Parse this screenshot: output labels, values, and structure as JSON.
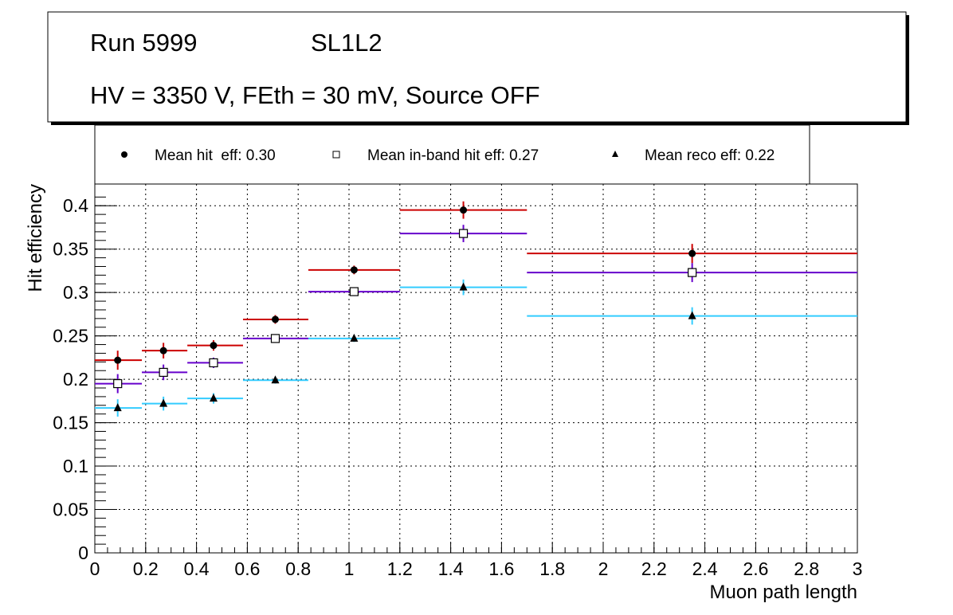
{
  "title_box": {
    "run": "Run 5999",
    "layer": "SL1L2",
    "conditions": "HV = 3350 V, FEth = 30 mV, Source OFF"
  },
  "chart_data": {
    "type": "scatter",
    "xlabel": "Muon path length",
    "ylabel": "Hit efficiency",
    "xlim": [
      0,
      3
    ],
    "ylim": [
      0,
      0.425
    ],
    "grid": true,
    "legend_position": "top",
    "xticks": [
      "0",
      "0.2",
      "0.4",
      "0.6",
      "0.8",
      "1",
      "1.2",
      "1.4",
      "1.6",
      "1.8",
      "2",
      "2.2",
      "2.4",
      "2.6",
      "2.8",
      "3"
    ],
    "yticks": [
      "0",
      "0.05",
      "0.1",
      "0.15",
      "0.2",
      "0.25",
      "0.3",
      "0.35",
      "0.4"
    ],
    "bin_edges": [
      0,
      0.185,
      0.364,
      0.583,
      0.84,
      1.2,
      1.7,
      3
    ],
    "x": [
      0.09,
      0.27,
      0.467,
      0.71,
      1.02,
      1.45,
      2.35
    ],
    "series": [
      {
        "name": "Mean hit  eff: 0.30",
        "marker": "circle",
        "color": "#cc0000",
        "values": [
          0.222,
          0.233,
          0.239,
          0.269,
          0.326,
          0.395,
          0.345
        ],
        "errors": [
          0.011,
          0.009,
          0.006,
          0.005,
          0.005,
          0.01,
          0.011
        ]
      },
      {
        "name": "Mean in-band hit eff: 0.27",
        "marker": "open-square",
        "color": "#6600cc",
        "values": [
          0.195,
          0.208,
          0.219,
          0.247,
          0.301,
          0.368,
          0.323
        ],
        "errors": [
          0.011,
          0.009,
          0.006,
          0.005,
          0.005,
          0.01,
          0.011
        ]
      },
      {
        "name": "Mean reco eff: 0.22",
        "marker": "triangle",
        "color": "#33ccff",
        "values": [
          0.167,
          0.172,
          0.178,
          0.199,
          0.247,
          0.306,
          0.273
        ],
        "errors": [
          0.01,
          0.008,
          0.006,
          0.004,
          0.004,
          0.009,
          0.01
        ]
      }
    ]
  }
}
